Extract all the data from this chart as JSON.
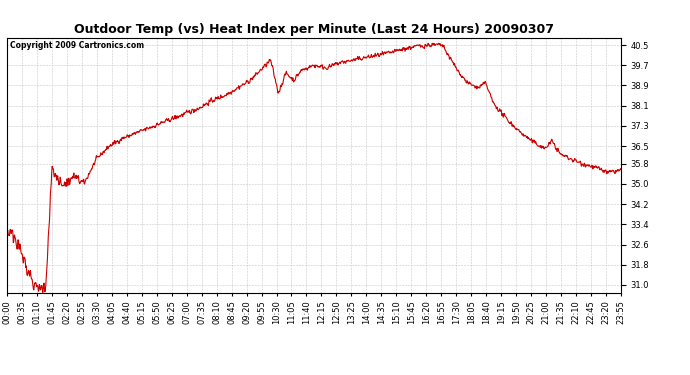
{
  "title": "Outdoor Temp (vs) Heat Index per Minute (Last 24 Hours) 20090307",
  "copyright_text": "Copyright 2009 Cartronics.com",
  "line_color": "#cc0000",
  "background_color": "#ffffff",
  "grid_color": "#bbbbbb",
  "yticks": [
    31.0,
    31.8,
    32.6,
    33.4,
    34.2,
    35.0,
    35.8,
    36.5,
    37.3,
    38.1,
    38.9,
    39.7,
    40.5
  ],
  "ylim": [
    30.7,
    40.8
  ],
  "xtick_labels": [
    "00:00",
    "00:35",
    "01:10",
    "01:45",
    "02:20",
    "02:55",
    "03:30",
    "04:05",
    "04:40",
    "05:15",
    "05:50",
    "06:25",
    "07:00",
    "07:35",
    "08:10",
    "08:45",
    "09:20",
    "09:55",
    "10:30",
    "11:05",
    "11:40",
    "12:15",
    "12:50",
    "13:25",
    "14:00",
    "14:35",
    "15:10",
    "15:45",
    "16:20",
    "16:55",
    "17:30",
    "18:05",
    "18:40",
    "19:15",
    "19:50",
    "20:25",
    "21:00",
    "21:35",
    "22:10",
    "22:45",
    "23:20",
    "23:55"
  ],
  "title_fontsize": 9,
  "copyright_fontsize": 5.5,
  "tick_fontsize": 6,
  "line_width": 0.8
}
